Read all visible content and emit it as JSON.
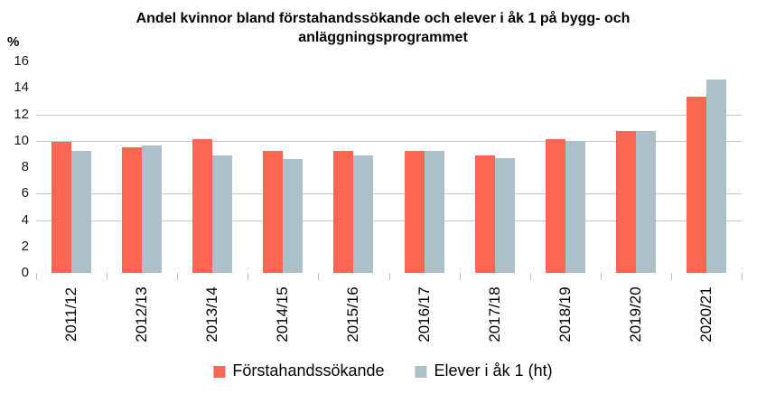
{
  "chart_data": {
    "type": "bar",
    "title": "Andel kvinnor bland förstahandssökande och elever i åk 1 på bygg- och anläggningsprogrammet",
    "ylabel": "%",
    "xlabel": "",
    "categories": [
      "2011/12",
      "2012/13",
      "2013/14",
      "2014/15",
      "2015/16",
      "2016/17",
      "2017/18",
      "2018/19",
      "2019/20",
      "2020/21"
    ],
    "series": [
      {
        "name": "Förstahandssökande",
        "color": "#FC6652",
        "values": [
          9.9,
          9.5,
          10.1,
          9.2,
          9.2,
          9.2,
          8.9,
          10.1,
          10.7,
          13.3
        ]
      },
      {
        "name": "Elever i åk 1 (ht)",
        "color": "#ABC0C9",
        "values": [
          9.2,
          9.6,
          8.9,
          8.6,
          8.9,
          9.2,
          8.7,
          10.0,
          10.7,
          14.6
        ]
      }
    ],
    "ylim": [
      0,
      16
    ],
    "yticks": [
      0,
      2,
      4,
      6,
      8,
      10,
      12,
      14,
      16
    ],
    "gridlines_at": [
      4,
      6,
      10,
      12
    ],
    "grid_color": "#C6C6C6",
    "tick_color": "#BFBFBF",
    "legend_position": "bottom",
    "x_labels_rotated_degrees": 90
  }
}
